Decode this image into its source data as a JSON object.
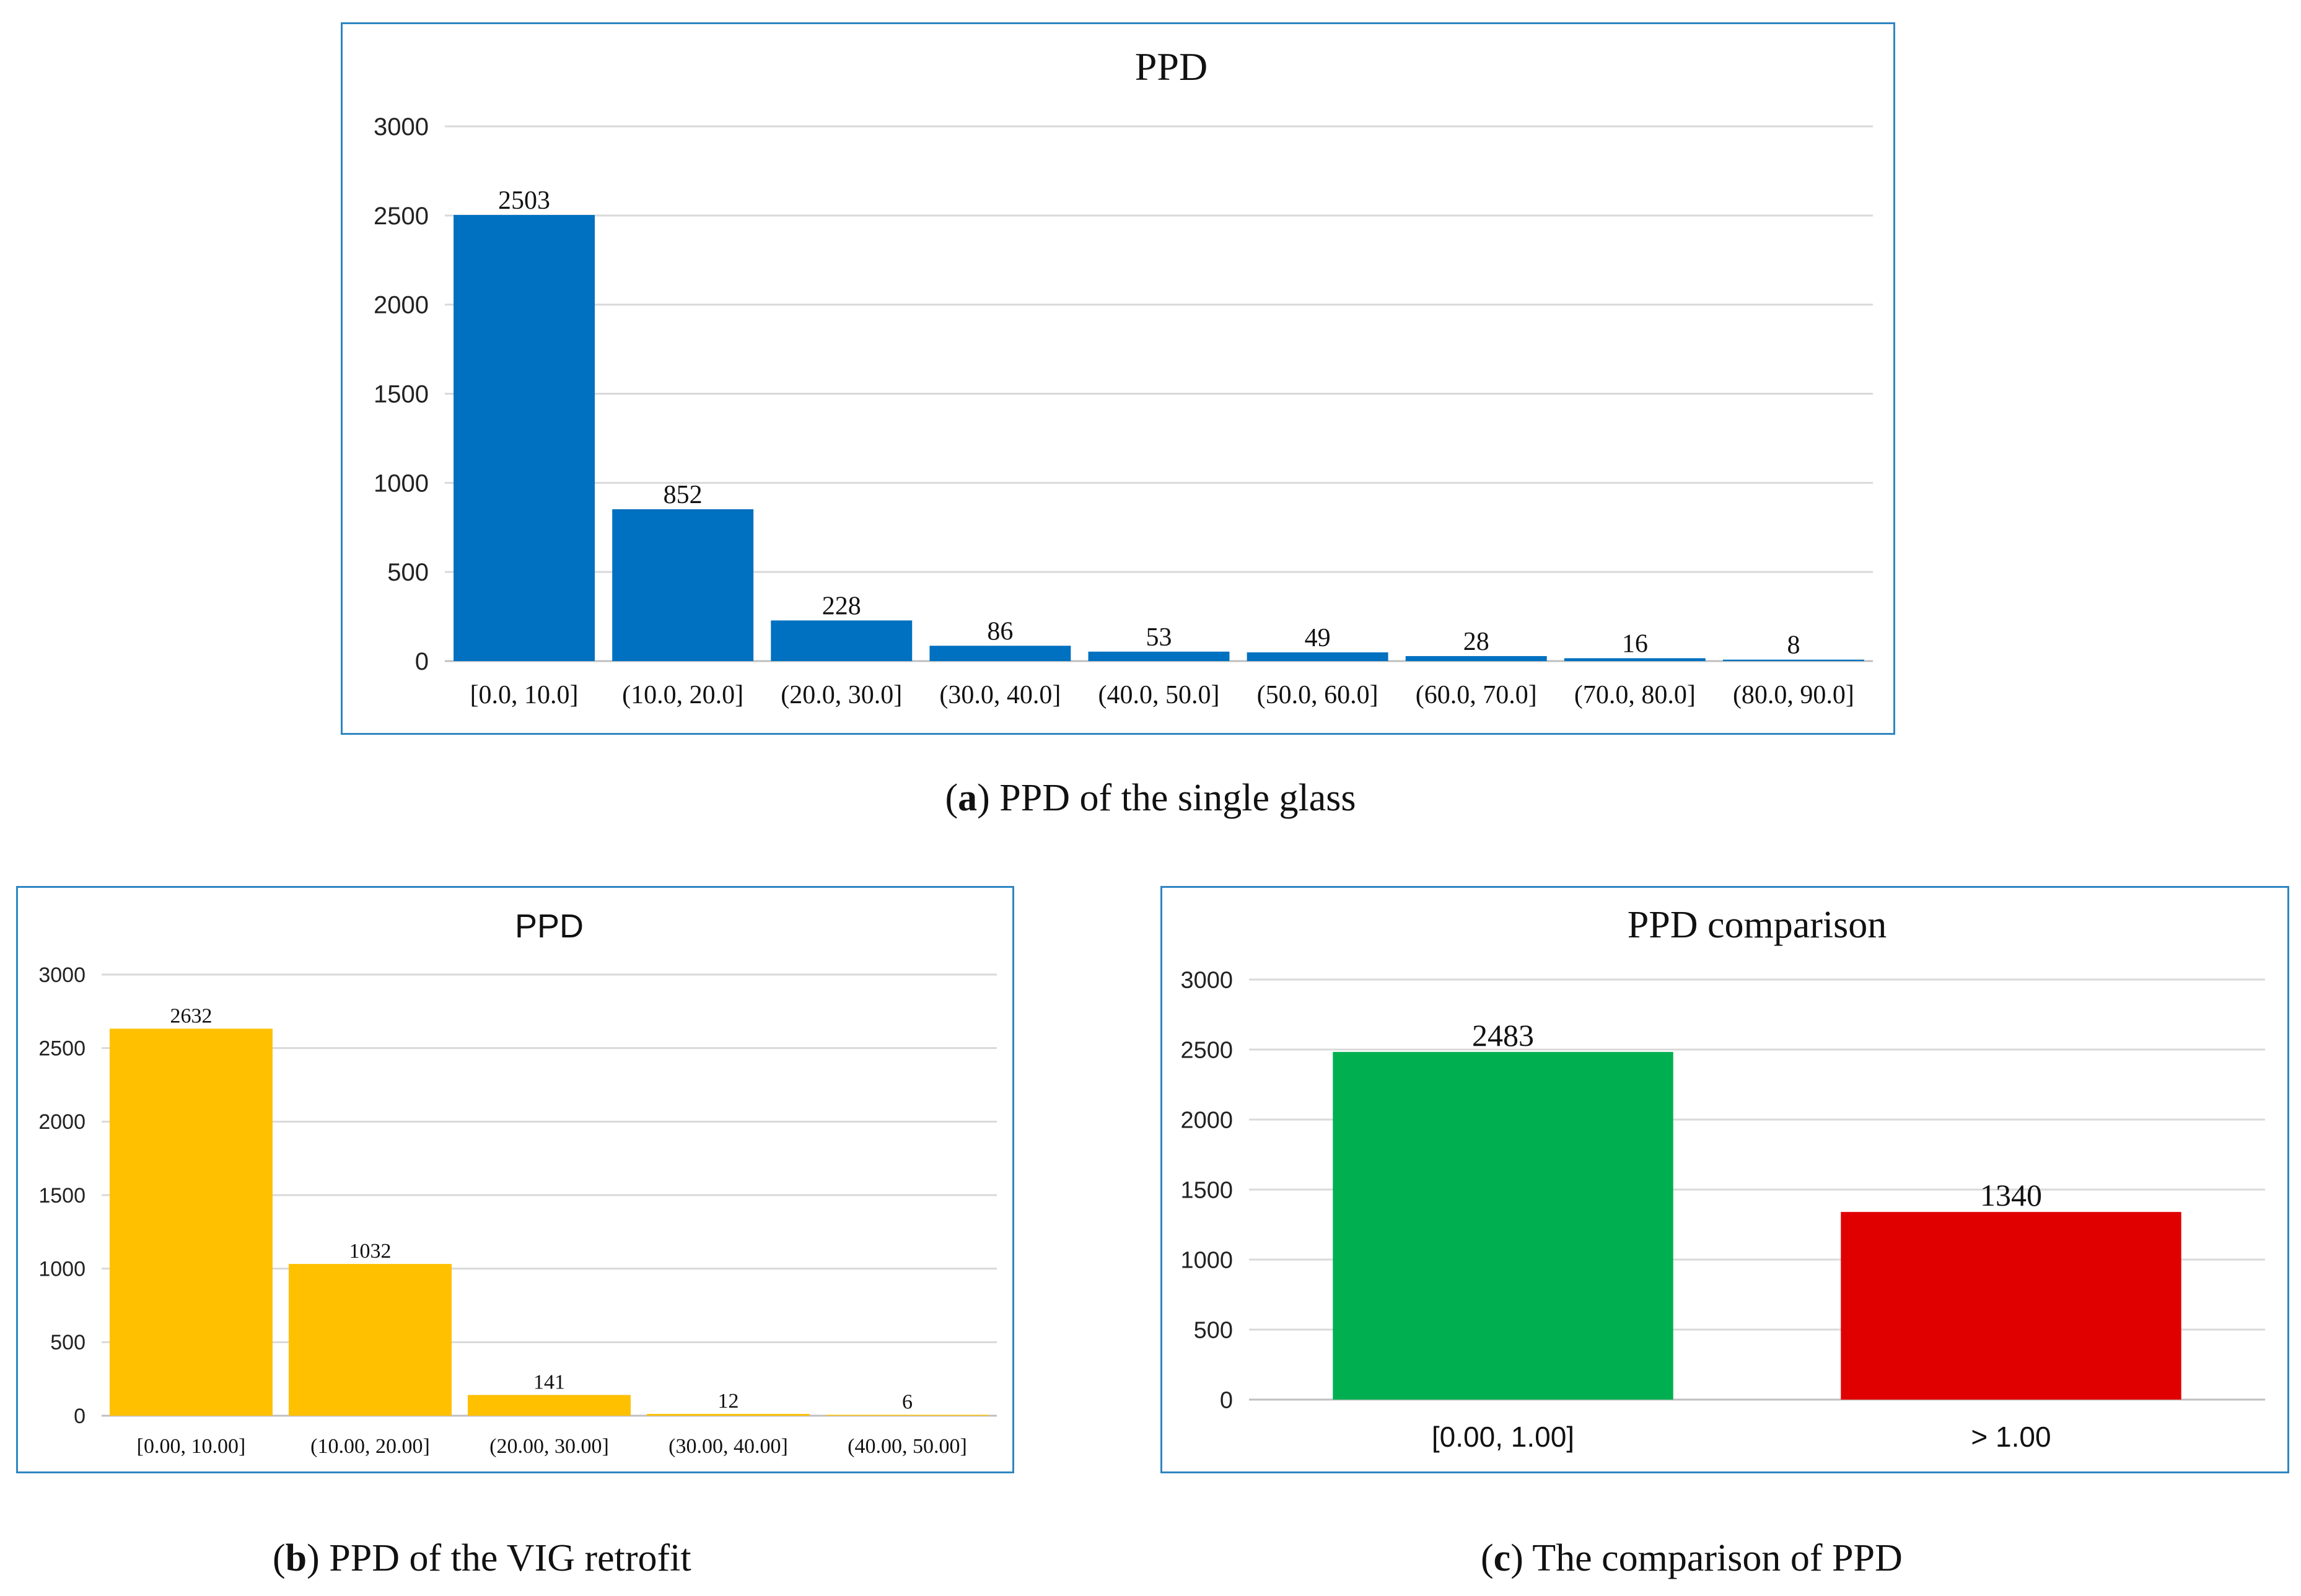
{
  "chart_data": [
    {
      "id": "a",
      "type": "bar",
      "title": "PPD",
      "categories": [
        "[0.0, 10.0]",
        "(10.0, 20.0]",
        "(20.0, 30.0]",
        "(30.0, 40.0]",
        "(40.0, 50.0]",
        "(50.0, 60.0]",
        "(60.0, 70.0]",
        "(70.0, 80.0]",
        "(80.0, 90.0]"
      ],
      "values": [
        2503,
        852,
        228,
        86,
        53,
        49,
        28,
        16,
        8
      ],
      "ylim": [
        0,
        3000
      ],
      "yticks": [
        0,
        500,
        1000,
        1500,
        2000,
        2500,
        3000
      ],
      "grid": true,
      "color": "#0070c0",
      "xlabel": "",
      "ylabel": ""
    },
    {
      "id": "b",
      "type": "bar",
      "title": "PPD",
      "categories": [
        "[0.00, 10.00]",
        "(10.00, 20.00]",
        "(20.00, 30.00]",
        "(30.00, 40.00]",
        "(40.00, 50.00]"
      ],
      "values": [
        2632,
        1032,
        141,
        12,
        6
      ],
      "ylim": [
        0,
        3000
      ],
      "yticks": [
        0,
        500,
        1000,
        1500,
        2000,
        2500,
        3000
      ],
      "grid": true,
      "color": "#ffc000",
      "xlabel": "",
      "ylabel": ""
    },
    {
      "id": "c",
      "type": "bar",
      "title": "PPD comparison",
      "categories": [
        "[0.00, 1.00]",
        "> 1.00"
      ],
      "values": [
        2483,
        1340
      ],
      "colors": [
        "#00b050",
        "#e00000"
      ],
      "ylim": [
        0,
        3000
      ],
      "yticks": [
        0,
        500,
        1000,
        1500,
        2000,
        2500,
        3000
      ],
      "grid": true,
      "xlabel": "",
      "ylabel": ""
    }
  ],
  "captions": {
    "a": {
      "letter": "a",
      "text": " PPD of the single glass"
    },
    "b": {
      "letter": "b",
      "text": " PPD of the VIG retrofit"
    },
    "c": {
      "letter": "c",
      "text": " The comparison of PPD"
    }
  }
}
